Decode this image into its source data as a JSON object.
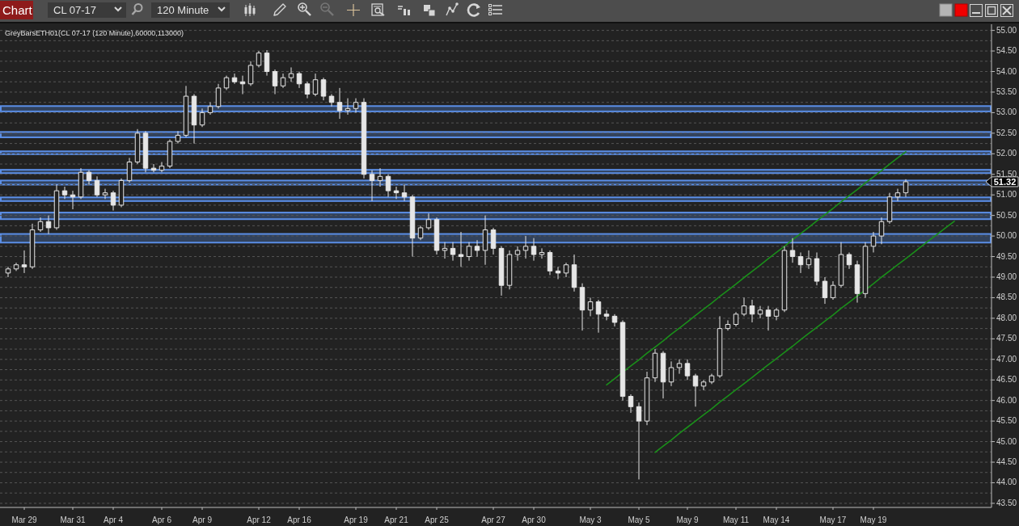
{
  "chart_data": {
    "type": "candlestick",
    "title": "GreyBarsETH01(CL 07-17 (120 Minute),60000,113000)",
    "categories": [
      null,
      null,
      "Mar 29",
      null,
      null,
      null,
      null,
      null,
      "Mar 31",
      null,
      null,
      null,
      null,
      "Apr 4",
      null,
      null,
      null,
      null,
      null,
      "Apr 6",
      null,
      null,
      null,
      null,
      "Apr 9",
      null,
      null,
      null,
      null,
      null,
      null,
      "Apr 12",
      null,
      null,
      null,
      null,
      "Apr 16",
      null,
      null,
      null,
      null,
      null,
      null,
      "Apr 19",
      null,
      null,
      null,
      null,
      "Apr 21",
      null,
      null,
      null,
      null,
      "Apr 25",
      null,
      null,
      null,
      null,
      null,
      null,
      "Apr 27",
      null,
      null,
      null,
      null,
      "Apr 30",
      null,
      null,
      null,
      null,
      null,
      null,
      "May 3",
      null,
      null,
      null,
      null,
      null,
      "May 5",
      null,
      null,
      null,
      null,
      null,
      "May 9",
      null,
      null,
      null,
      null,
      null,
      "May 11",
      null,
      null,
      null,
      null,
      "May 14",
      null,
      null,
      null,
      null,
      null,
      null,
      "May 17",
      null,
      null,
      null,
      null,
      "May 19",
      null,
      null,
      null,
      null,
      null,
      null,
      null,
      null,
      null,
      null
    ],
    "ohlc": [
      [
        49.1,
        49.25,
        49.0,
        49.2
      ],
      [
        49.2,
        49.35,
        49.15,
        49.3
      ],
      [
        49.3,
        49.65,
        49.1,
        49.25
      ],
      [
        49.25,
        50.3,
        49.2,
        50.15
      ],
      [
        50.15,
        50.45,
        50.1,
        50.35
      ],
      [
        50.35,
        50.5,
        50.05,
        50.2
      ],
      [
        50.2,
        51.25,
        50.15,
        51.1
      ],
      [
        51.1,
        51.2,
        50.9,
        51.0
      ],
      [
        51.0,
        51.1,
        50.65,
        50.95
      ],
      [
        50.95,
        51.65,
        50.9,
        51.55
      ],
      [
        51.55,
        51.6,
        51.25,
        51.35
      ],
      [
        51.35,
        51.45,
        50.95,
        51.0
      ],
      [
        51.0,
        51.15,
        50.9,
        51.05
      ],
      [
        51.05,
        51.1,
        50.62,
        50.75
      ],
      [
        50.75,
        51.4,
        50.7,
        51.35
      ],
      [
        51.35,
        51.9,
        51.3,
        51.8
      ],
      [
        51.8,
        52.6,
        51.75,
        52.5
      ],
      [
        52.5,
        52.55,
        51.55,
        51.65
      ],
      [
        51.65,
        51.75,
        51.55,
        51.6
      ],
      [
        51.6,
        51.8,
        51.55,
        51.7
      ],
      [
        51.7,
        52.35,
        51.65,
        52.3
      ],
      [
        52.3,
        52.55,
        52.25,
        52.45
      ],
      [
        52.45,
        53.65,
        52.4,
        53.4
      ],
      [
        53.4,
        53.45,
        52.25,
        52.7
      ],
      [
        52.7,
        53.1,
        52.65,
        53.0
      ],
      [
        53.0,
        53.25,
        52.95,
        53.15
      ],
      [
        53.15,
        53.7,
        53.1,
        53.6
      ],
      [
        53.6,
        53.9,
        53.55,
        53.85
      ],
      [
        53.85,
        53.95,
        53.7,
        53.75
      ],
      [
        53.75,
        53.9,
        53.45,
        53.7
      ],
      [
        53.7,
        54.25,
        53.65,
        54.15
      ],
      [
        54.15,
        54.5,
        54.1,
        54.45
      ],
      [
        54.45,
        54.52,
        53.9,
        54.0
      ],
      [
        54.0,
        54.05,
        53.45,
        53.65
      ],
      [
        53.65,
        53.95,
        53.6,
        53.85
      ],
      [
        53.85,
        54.1,
        53.75,
        53.95
      ],
      [
        53.95,
        54.0,
        53.6,
        53.7
      ],
      [
        53.7,
        53.75,
        53.35,
        53.45
      ],
      [
        53.45,
        53.95,
        53.4,
        53.8
      ],
      [
        53.8,
        53.85,
        53.3,
        53.4
      ],
      [
        53.4,
        53.45,
        53.15,
        53.25
      ],
      [
        53.25,
        53.6,
        52.85,
        53.05
      ],
      [
        53.05,
        53.35,
        52.95,
        53.1
      ],
      [
        53.1,
        53.35,
        53.0,
        53.25
      ],
      [
        53.25,
        53.35,
        51.4,
        51.5
      ],
      [
        51.5,
        51.6,
        50.85,
        51.35
      ],
      [
        51.35,
        51.65,
        51.2,
        51.45
      ],
      [
        51.45,
        51.5,
        50.95,
        51.1
      ],
      [
        51.1,
        51.2,
        50.9,
        51.05
      ],
      [
        51.05,
        51.25,
        50.85,
        50.95
      ],
      [
        50.95,
        51.0,
        49.5,
        49.95
      ],
      [
        49.95,
        50.25,
        49.9,
        50.2
      ],
      [
        50.2,
        50.55,
        50.15,
        50.4
      ],
      [
        50.4,
        50.45,
        49.55,
        49.65
      ],
      [
        49.65,
        49.85,
        49.45,
        49.7
      ],
      [
        49.7,
        49.85,
        49.4,
        49.55
      ],
      [
        49.55,
        50.1,
        49.25,
        49.5
      ],
      [
        49.5,
        49.85,
        49.4,
        49.75
      ],
      [
        49.75,
        49.9,
        49.5,
        49.65
      ],
      [
        49.65,
        50.5,
        49.3,
        50.15
      ],
      [
        50.15,
        50.2,
        49.55,
        49.7
      ],
      [
        49.7,
        49.75,
        48.55,
        48.8
      ],
      [
        48.8,
        49.65,
        48.7,
        49.55
      ],
      [
        49.55,
        49.75,
        49.4,
        49.65
      ],
      [
        49.65,
        50.0,
        49.45,
        49.75
      ],
      [
        49.75,
        49.95,
        49.4,
        49.55
      ],
      [
        49.55,
        49.7,
        49.45,
        49.6
      ],
      [
        49.6,
        49.65,
        49.05,
        49.15
      ],
      [
        49.15,
        49.25,
        48.95,
        49.1
      ],
      [
        49.1,
        49.35,
        49.0,
        49.3
      ],
      [
        49.3,
        49.55,
        48.65,
        48.75
      ],
      [
        48.75,
        48.85,
        47.7,
        48.2
      ],
      [
        48.2,
        48.5,
        48.05,
        48.4
      ],
      [
        48.4,
        48.45,
        47.65,
        48.1
      ],
      [
        48.1,
        48.2,
        47.95,
        48.05
      ],
      [
        48.05,
        48.1,
        47.8,
        47.9
      ],
      [
        47.9,
        47.95,
        46.0,
        46.1
      ],
      [
        46.1,
        46.15,
        45.7,
        45.85
      ],
      [
        45.85,
        45.95,
        44.08,
        45.5
      ],
      [
        45.5,
        46.7,
        45.4,
        46.55
      ],
      [
        46.55,
        47.25,
        46.45,
        47.15
      ],
      [
        47.15,
        47.2,
        46.05,
        46.45
      ],
      [
        46.45,
        46.95,
        46.35,
        46.8
      ],
      [
        46.8,
        47.0,
        46.65,
        46.9
      ],
      [
        46.9,
        47.0,
        46.5,
        46.6
      ],
      [
        46.6,
        46.65,
        45.85,
        46.35
      ],
      [
        46.35,
        46.5,
        46.25,
        46.45
      ],
      [
        46.45,
        46.65,
        46.4,
        46.6
      ],
      [
        46.6,
        48.05,
        46.55,
        47.75
      ],
      [
        47.75,
        47.95,
        47.7,
        47.85
      ],
      [
        47.85,
        48.15,
        47.8,
        48.1
      ],
      [
        48.1,
        48.5,
        48.05,
        48.3
      ],
      [
        48.3,
        48.45,
        47.9,
        48.1
      ],
      [
        48.1,
        48.3,
        48.0,
        48.2
      ],
      [
        48.2,
        48.3,
        47.7,
        48.05
      ],
      [
        48.05,
        48.25,
        47.95,
        48.2
      ],
      [
        48.2,
        49.75,
        48.15,
        49.65
      ],
      [
        49.65,
        49.95,
        49.35,
        49.5
      ],
      [
        49.5,
        49.6,
        49.1,
        49.3
      ],
      [
        49.3,
        49.65,
        49.2,
        49.45
      ],
      [
        49.45,
        49.6,
        48.8,
        48.9
      ],
      [
        48.9,
        49.0,
        48.35,
        48.5
      ],
      [
        48.5,
        48.9,
        48.45,
        48.8
      ],
      [
        48.8,
        49.85,
        48.75,
        49.55
      ],
      [
        49.55,
        49.6,
        49.2,
        49.3
      ],
      [
        49.3,
        49.4,
        48.38,
        48.6
      ],
      [
        48.6,
        49.85,
        48.5,
        49.75
      ],
      [
        49.75,
        50.1,
        49.6,
        50.0
      ],
      [
        50.0,
        50.45,
        49.8,
        50.35
      ],
      [
        50.35,
        51.05,
        50.3,
        50.95
      ],
      [
        50.95,
        51.15,
        50.85,
        51.05
      ],
      [
        51.05,
        51.38,
        50.95,
        51.32
      ],
      null,
      null,
      null,
      null,
      null,
      null
    ],
    "color": "#e6e6e6",
    "series": [
      {
        "type": "line",
        "color": "#1a8f1a",
        "values": [
          null,
          null,
          null,
          null,
          null,
          null,
          null,
          null,
          null,
          null,
          null,
          null,
          null,
          null,
          null,
          null,
          null,
          null,
          null,
          null,
          null,
          null,
          null,
          null,
          null,
          null,
          null,
          null,
          null,
          null,
          null,
          null,
          null,
          null,
          null,
          null,
          null,
          null,
          null,
          null,
          null,
          null,
          null,
          null,
          null,
          null,
          null,
          null,
          null,
          null,
          null,
          null,
          null,
          null,
          null,
          null,
          null,
          null,
          null,
          null,
          null,
          null,
          null,
          null,
          null,
          null,
          null,
          null,
          null,
          null,
          null,
          null,
          null,
          null,
          46.38,
          46.53,
          46.69,
          46.84,
          46.99,
          47.15,
          47.3,
          47.45,
          47.61,
          47.76,
          47.91,
          48.07,
          48.22,
          48.37,
          48.53,
          48.68,
          48.83,
          48.99,
          49.14,
          49.29,
          49.45,
          49.6,
          49.75,
          49.91,
          50.06,
          50.21,
          50.37,
          50.52,
          50.67,
          50.83,
          50.98,
          51.13,
          51.29,
          51.44,
          51.59,
          51.75,
          51.9,
          52.05,
          null,
          null,
          null,
          null,
          null,
          null
        ]
      },
      {
        "type": "line",
        "color": "#1a8f1a",
        "values": [
          null,
          null,
          null,
          null,
          null,
          null,
          null,
          null,
          null,
          null,
          null,
          null,
          null,
          null,
          null,
          null,
          null,
          null,
          null,
          null,
          null,
          null,
          null,
          null,
          null,
          null,
          null,
          null,
          null,
          null,
          null,
          null,
          null,
          null,
          null,
          null,
          null,
          null,
          null,
          null,
          null,
          null,
          null,
          null,
          null,
          null,
          null,
          null,
          null,
          null,
          null,
          null,
          null,
          null,
          null,
          null,
          null,
          null,
          null,
          null,
          null,
          null,
          null,
          null,
          null,
          null,
          null,
          null,
          null,
          null,
          null,
          null,
          null,
          null,
          null,
          null,
          null,
          null,
          null,
          null,
          44.74,
          44.89,
          45.04,
          45.2,
          45.35,
          45.5,
          45.65,
          45.8,
          45.96,
          46.11,
          46.26,
          46.41,
          46.56,
          46.72,
          46.87,
          47.02,
          47.17,
          47.32,
          47.48,
          47.63,
          47.78,
          47.93,
          48.08,
          48.24,
          48.39,
          48.54,
          48.69,
          48.84,
          49.0,
          49.15,
          49.3,
          49.45,
          49.6,
          49.76,
          49.91,
          50.06,
          50.21,
          50.36
        ]
      }
    ],
    "ylim": [
      43.4,
      55.15
    ],
    "yticks": [
      {
        "value": 43.5,
        "label": "43.50"
      },
      {
        "value": 43.75,
        "label": null
      },
      {
        "value": 44,
        "label": "44.00"
      },
      {
        "value": 44.25,
        "label": null
      },
      {
        "value": 44.5,
        "label": "44.50"
      },
      {
        "value": 44.75,
        "label": null
      },
      {
        "value": 45,
        "label": "45.00"
      },
      {
        "value": 45.25,
        "label": null
      },
      {
        "value": 45.5,
        "label": "45.50"
      },
      {
        "value": 45.75,
        "label": null
      },
      {
        "value": 46,
        "label": "46.00"
      },
      {
        "value": 46.25,
        "label": null
      },
      {
        "value": 46.5,
        "label": "46.50"
      },
      {
        "value": 46.75,
        "label": null
      },
      {
        "value": 47,
        "label": "47.00"
      },
      {
        "value": 47.25,
        "label": null
      },
      {
        "value": 47.5,
        "label": "47.50"
      },
      {
        "value": 47.75,
        "label": null
      },
      {
        "value": 48,
        "label": "48.00"
      },
      {
        "value": 48.25,
        "label": null
      },
      {
        "value": 48.5,
        "label": "48.50"
      },
      {
        "value": 48.75,
        "label": null
      },
      {
        "value": 49,
        "label": "49.00"
      },
      {
        "value": 49.25,
        "label": null
      },
      {
        "value": 49.5,
        "label": "49.50"
      },
      {
        "value": 49.75,
        "label": null
      },
      {
        "value": 50,
        "label": "50.00"
      },
      {
        "value": 50.25,
        "label": null
      },
      {
        "value": 50.5,
        "label": "50.50"
      },
      {
        "value": 50.75,
        "label": null
      },
      {
        "value": 51,
        "label": "51.00"
      },
      {
        "value": 51.25,
        "label": null
      },
      {
        "value": 51.5,
        "label": "51.50"
      },
      {
        "value": 51.75,
        "label": null
      },
      {
        "value": 52,
        "label": "52.00"
      },
      {
        "value": 52.25,
        "label": null
      },
      {
        "value": 52.5,
        "label": "52.50"
      },
      {
        "value": 52.75,
        "label": null
      },
      {
        "value": 53,
        "label": "53.00"
      },
      {
        "value": 53.25,
        "label": null
      },
      {
        "value": 53.5,
        "label": "53.50"
      },
      {
        "value": 53.75,
        "label": null
      },
      {
        "value": 54,
        "label": "54.00"
      },
      {
        "value": 54.25,
        "label": null
      },
      {
        "value": 54.5,
        "label": "54.50"
      },
      {
        "value": 54.75,
        "label": null
      },
      {
        "value": 55,
        "label": "55.00"
      }
    ],
    "grid": "y",
    "bands": [
      {
        "axis": "y",
        "from": 53.03,
        "to": 53.16,
        "color": "#5b8ee6"
      },
      {
        "axis": "y",
        "from": 52.4,
        "to": 52.53,
        "color": "#5b8ee6"
      },
      {
        "axis": "y",
        "from": 51.99,
        "to": 52.06,
        "color": "#5b8ee6"
      },
      {
        "axis": "y",
        "from": 51.53,
        "to": 51.61,
        "color": "#5b8ee6"
      },
      {
        "axis": "y",
        "from": 51.25,
        "to": 51.35,
        "color": "#5b8ee6"
      },
      {
        "axis": "y",
        "from": 50.85,
        "to": 50.94,
        "color": "#5b8ee6"
      },
      {
        "axis": "y",
        "from": 50.41,
        "to": 50.57,
        "color": "#5b8ee6"
      },
      {
        "axis": "y",
        "from": 49.84,
        "to": 50.05,
        "color": "#5b8ee6"
      }
    ],
    "annotations": [
      "Chart",
      "CL 07-17",
      "120 Minute",
      "51.32"
    ]
  }
}
